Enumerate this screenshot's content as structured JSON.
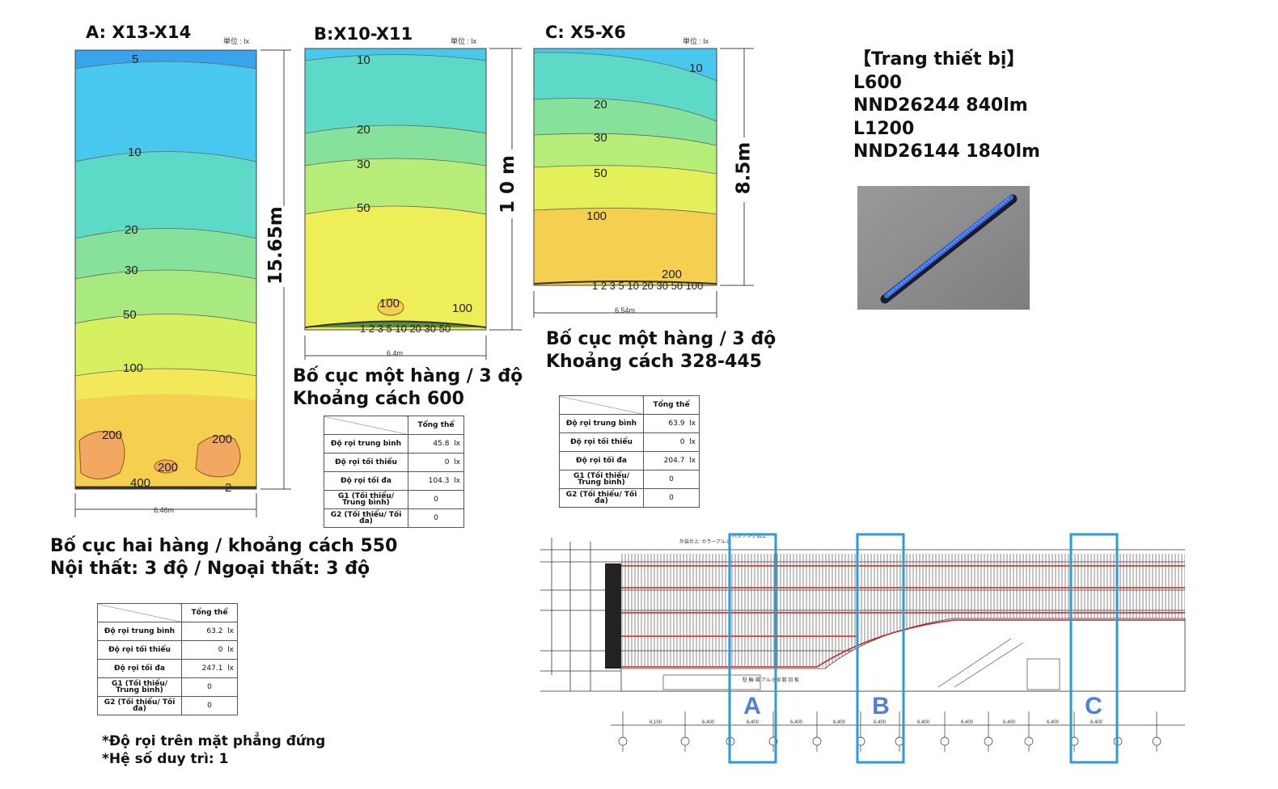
{
  "panels": [
    {
      "id": "A",
      "title": "A:  X13-X14",
      "unit_label": "単位 : lx",
      "dim_vertical": "15.65m",
      "dim_horizontal": "6.46m",
      "contour_labels": [
        "5",
        "10",
        "20",
        "30",
        "50",
        "100",
        "200",
        "200",
        "200",
        "400",
        "2"
      ],
      "caption_lines": [
        "Bố cục hai hàng / khoảng cách 550",
        "Nội thất: 3 độ / Ngoại thất: 3 độ"
      ],
      "table": {
        "header": "Tổng thể",
        "rows": [
          {
            "label": "Độ rọi trung bình",
            "value": "63.2",
            "unit": "lx"
          },
          {
            "label": "Độ rọi tối thiểu",
            "value": "0",
            "unit": "lx"
          },
          {
            "label": "Độ rọi tối đa",
            "value": "247.1",
            "unit": "lx"
          },
          {
            "label": "G1 (Tối thiểu/ Trung bình)",
            "value": "0",
            "unit": ""
          },
          {
            "label": "G2 (Tối thiểu/ Tối đa)",
            "value": "0",
            "unit": ""
          }
        ]
      }
    },
    {
      "id": "B",
      "title": "B:X10-X11",
      "unit_label": "単位 : lx",
      "dim_vertical": "1 0 m",
      "dim_horizontal": "6.4m",
      "contour_labels": [
        "10",
        "20",
        "30",
        "50",
        "100",
        "100",
        "1 2 3 5 10 20 30 50"
      ],
      "caption_lines": [
        "Bố cục một hàng / 3 độ",
        "Khoảng cách 600"
      ],
      "table": {
        "header": "Tổng thể",
        "rows": [
          {
            "label": "Độ rọi trung bình",
            "value": "45.8",
            "unit": "lx"
          },
          {
            "label": "Độ rọi tối thiểu",
            "value": "0",
            "unit": "lx"
          },
          {
            "label": "Độ rọi tối đa",
            "value": "104.3",
            "unit": "lx"
          },
          {
            "label": "G1 (Tối thiểu/ Trung bình)",
            "value": "0",
            "unit": ""
          },
          {
            "label": "G2 (Tối thiểu/ Tối đa)",
            "value": "0",
            "unit": ""
          }
        ]
      }
    },
    {
      "id": "C",
      "title": "C:  X5-X6",
      "unit_label": "単位 : lx",
      "dim_vertical": "8.5m",
      "dim_horizontal": "6.54m",
      "contour_labels": [
        "10",
        "20",
        "30",
        "50",
        "100",
        "200",
        "1 2 3 5 10 20 30 50 100"
      ],
      "caption_lines": [
        "Bố cục một hàng / 3 độ",
        "Khoảng cách 328-445"
      ],
      "table": {
        "header": "Tổng thể",
        "rows": [
          {
            "label": "Độ rọi trung bình",
            "value": "63.9",
            "unit": "lx"
          },
          {
            "label": "Độ rọi tối thiểu",
            "value": "0",
            "unit": "lx"
          },
          {
            "label": "Độ rọi tối đa",
            "value": "204.7",
            "unit": "lx"
          },
          {
            "label": "G1 (Tối thiểu/ Trung bình)",
            "value": "0",
            "unit": ""
          },
          {
            "label": "G2 (Tối thiểu/ Tối đa)",
            "value": "0",
            "unit": ""
          }
        ]
      }
    }
  ],
  "equipment": {
    "lines": [
      "【Trang thiết bị】",
      "L600",
      "NND26244   840lm",
      "L1200",
      "NND26144   1840lm"
    ]
  },
  "notes": [
    "*Độ rọi trên mặt phẳng đứng",
    "*Hệ số duy trì: 1"
  ],
  "elevation": {
    "section_markers": [
      "A",
      "B",
      "C"
    ],
    "marker_color": "#2e9ad6",
    "marker_text_color": "#4f7fd6",
    "top_labels": [
      "外装仕上: カラーアルミ",
      "パンチング加工ー"
    ],
    "bottom_note": "駐 輪 場 アルミ樹 脂 羽 板",
    "bay_dims": [
      "6,100",
      "6,400",
      "6,400",
      "6,400",
      "6,400",
      "6,400",
      "6,400",
      "6,400",
      "6,400",
      "6,400",
      "6,400"
    ]
  },
  "colors": {
    "contour_blue": "#3aa3ee",
    "contour_cyan": "#48c8ee",
    "contour_teal": "#5dd9c8",
    "contour_green": "#86e29a",
    "contour_lime": "#c0ee6a",
    "contour_yellow": "#eeee58",
    "contour_orange": "#f5d050",
    "contour_hot": "#f2a860",
    "elevation_red": "#d02020"
  }
}
